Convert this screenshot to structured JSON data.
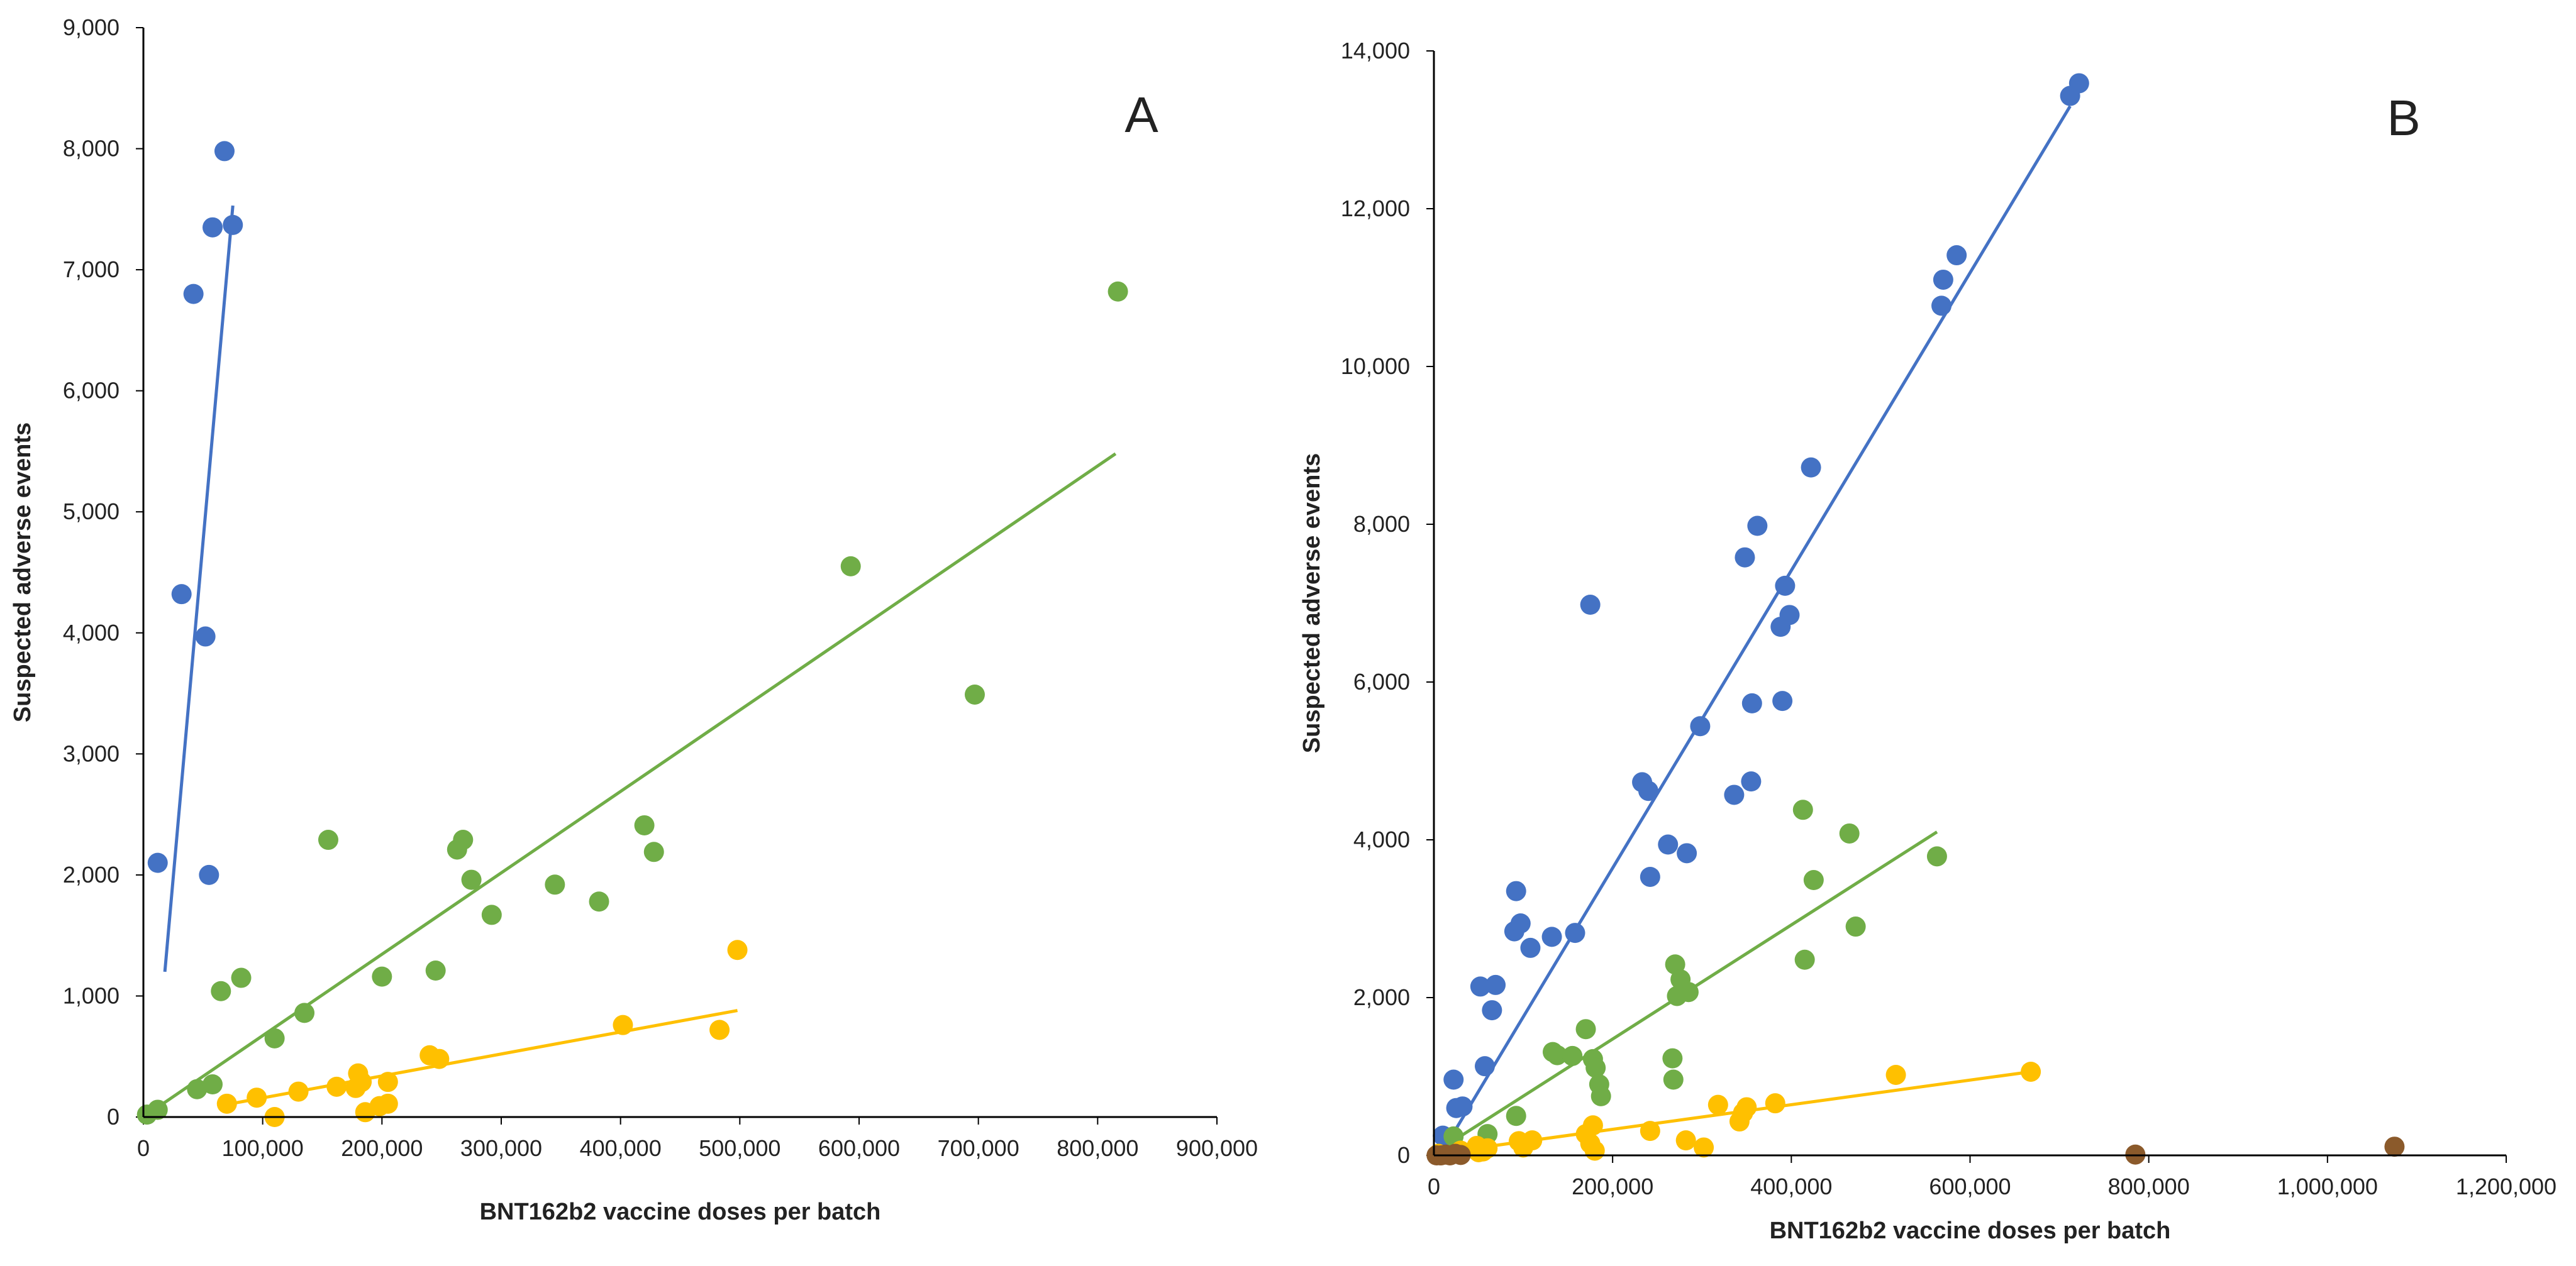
{
  "colors": {
    "blue": "#4472C4",
    "green": "#70AD47",
    "yellow": "#FFC000",
    "brown": "#8B5A2B",
    "axis": "#000000"
  },
  "chart_data": [
    {
      "type": "scatter",
      "panel_label": "A",
      "xlabel": "BNT162b2 vaccine doses per batch",
      "ylabel": "Suspected adverse events",
      "xlim": [
        0,
        900000
      ],
      "ylim": [
        0,
        9000
      ],
      "x_ticks": [
        0,
        100000,
        200000,
        300000,
        400000,
        500000,
        600000,
        700000,
        800000,
        900000
      ],
      "y_ticks": [
        0,
        1000,
        2000,
        3000,
        4000,
        5000,
        6000,
        7000,
        8000,
        9000
      ],
      "x_tick_labels": [
        "0",
        "100,000",
        "200,000",
        "300,000",
        "400,000",
        "500,000",
        "600,000",
        "700,000",
        "800,000",
        "900,000"
      ],
      "y_tick_labels": [
        "0",
        "1,000",
        "2,000",
        "3,000",
        "4,000",
        "5,000",
        "6,000",
        "7,000",
        "8,000",
        "9,000"
      ],
      "series": [
        {
          "name": "blue",
          "color": "#4472C4",
          "points": [
            [
              12000,
              2100
            ],
            [
              32000,
              4320
            ],
            [
              42000,
              6800
            ],
            [
              52000,
              3970
            ],
            [
              55000,
              2000
            ],
            [
              58000,
              7350
            ],
            [
              68000,
              7980
            ],
            [
              75000,
              7370
            ]
          ],
          "trend": [
            [
              18000,
              1200
            ],
            [
              75000,
              7530
            ]
          ]
        },
        {
          "name": "green",
          "color": "#70AD47",
          "points": [
            [
              3000,
              20
            ],
            [
              12000,
              60
            ],
            [
              45000,
              230
            ],
            [
              58000,
              270
            ],
            [
              65000,
              1040
            ],
            [
              82000,
              1150
            ],
            [
              110000,
              650
            ],
            [
              135000,
              860
            ],
            [
              155000,
              2290
            ],
            [
              200000,
              1160
            ],
            [
              245000,
              1210
            ],
            [
              263000,
              2210
            ],
            [
              268000,
              2290
            ],
            [
              275000,
              1960
            ],
            [
              292000,
              1670
            ],
            [
              345000,
              1920
            ],
            [
              382000,
              1780
            ],
            [
              420000,
              2410
            ],
            [
              428000,
              2190
            ],
            [
              593000,
              4550
            ],
            [
              697000,
              3490
            ],
            [
              817000,
              6820
            ]
          ],
          "trend": [
            [
              0,
              0
            ],
            [
              815000,
              5480
            ]
          ]
        },
        {
          "name": "yellow",
          "color": "#FFC000",
          "points": [
            [
              70000,
              110
            ],
            [
              95000,
              160
            ],
            [
              110000,
              0
            ],
            [
              130000,
              210
            ],
            [
              162000,
              250
            ],
            [
              178000,
              240
            ],
            [
              180000,
              360
            ],
            [
              183000,
              290
            ],
            [
              186000,
              40
            ],
            [
              198000,
              90
            ],
            [
              205000,
              290
            ],
            [
              205000,
              110
            ],
            [
              240000,
              510
            ],
            [
              248000,
              480
            ],
            [
              402000,
              760
            ],
            [
              483000,
              720
            ],
            [
              498000,
              1380
            ]
          ],
          "trend": [
            [
              68000,
              100
            ],
            [
              498000,
              880
            ]
          ]
        }
      ]
    },
    {
      "type": "scatter",
      "panel_label": "B",
      "xlabel": "BNT162b2 vaccine doses per batch",
      "ylabel": "Suspected adverse events",
      "xlim": [
        0,
        1200000
      ],
      "ylim": [
        0,
        14000
      ],
      "x_ticks": [
        0,
        200000,
        400000,
        600000,
        800000,
        1000000,
        1200000
      ],
      "y_ticks": [
        0,
        2000,
        4000,
        6000,
        8000,
        10000,
        12000,
        14000
      ],
      "x_tick_labels": [
        "0",
        "200,000",
        "400,000",
        "600,000",
        "800,000",
        "1,000,000",
        "1,200,000"
      ],
      "y_tick_labels": [
        "0",
        "2,000",
        "4,000",
        "6,000",
        "8,000",
        "10,000",
        "12,000",
        "14,000"
      ],
      "series": [
        {
          "name": "blue",
          "color": "#4472C4",
          "points": [
            [
              10000,
              250
            ],
            [
              22000,
              960
            ],
            [
              25000,
              600
            ],
            [
              32000,
              620
            ],
            [
              52000,
              2140
            ],
            [
              57000,
              1130
            ],
            [
              65000,
              1840
            ],
            [
              69000,
              2160
            ],
            [
              90000,
              2840
            ],
            [
              92000,
              3350
            ],
            [
              97000,
              2940
            ],
            [
              108000,
              2630
            ],
            [
              132000,
              2770
            ],
            [
              158000,
              2820
            ],
            [
              175000,
              6980
            ],
            [
              233000,
              4730
            ],
            [
              240000,
              4620
            ],
            [
              242000,
              3530
            ],
            [
              262000,
              3940
            ],
            [
              283000,
              3830
            ],
            [
              298000,
              5440
            ],
            [
              336000,
              4570
            ],
            [
              348000,
              7580
            ],
            [
              355000,
              4740
            ],
            [
              356000,
              5730
            ],
            [
              362000,
              7980
            ],
            [
              388000,
              6700
            ],
            [
              390000,
              5760
            ],
            [
              393000,
              7220
            ],
            [
              398000,
              6850
            ],
            [
              422000,
              8720
            ],
            [
              568000,
              10770
            ],
            [
              570000,
              11100
            ],
            [
              585000,
              11410
            ],
            [
              712000,
              13430
            ],
            [
              722000,
              13590
            ]
          ],
          "trend": [
            [
              8000,
              20
            ],
            [
              712000,
              13300
            ]
          ]
        },
        {
          "name": "green",
          "color": "#70AD47",
          "points": [
            [
              22000,
              240
            ],
            [
              60000,
              270
            ],
            [
              92000,
              500
            ],
            [
              133000,
              1310
            ],
            [
              138000,
              1270
            ],
            [
              155000,
              1260
            ],
            [
              170000,
              1600
            ],
            [
              178000,
              1220
            ],
            [
              181000,
              1110
            ],
            [
              185000,
              900
            ],
            [
              187000,
              750
            ],
            [
              267000,
              1230
            ],
            [
              268000,
              960
            ],
            [
              270000,
              2420
            ],
            [
              272000,
              2020
            ],
            [
              276000,
              2230
            ],
            [
              285000,
              2070
            ],
            [
              413000,
              4380
            ],
            [
              415000,
              2480
            ],
            [
              425000,
              3490
            ],
            [
              465000,
              4080
            ],
            [
              472000,
              2900
            ],
            [
              563000,
              3790
            ]
          ],
          "trend": [
            [
              10000,
              100
            ],
            [
              563000,
              4100
            ]
          ]
        },
        {
          "name": "yellow",
          "color": "#FFC000",
          "points": [
            [
              5000,
              20
            ],
            [
              30000,
              60
            ],
            [
              48000,
              120
            ],
            [
              50000,
              40
            ],
            [
              55000,
              50
            ],
            [
              60000,
              90
            ],
            [
              95000,
              180
            ],
            [
              100000,
              100
            ],
            [
              110000,
              190
            ],
            [
              170000,
              270
            ],
            [
              175000,
              150
            ],
            [
              178000,
              380
            ],
            [
              180000,
              60
            ],
            [
              242000,
              310
            ],
            [
              282000,
              190
            ],
            [
              302000,
              100
            ],
            [
              318000,
              640
            ],
            [
              342000,
              430
            ],
            [
              346000,
              540
            ],
            [
              350000,
              610
            ],
            [
              382000,
              660
            ],
            [
              517000,
              1020
            ],
            [
              668000,
              1060
            ]
          ],
          "trend": [
            [
              20000,
              50
            ],
            [
              668000,
              1060
            ]
          ]
        },
        {
          "name": "brown",
          "color": "#8B5A2B",
          "points": [
            [
              3000,
              0
            ],
            [
              8000,
              0
            ],
            [
              13000,
              10
            ],
            [
              18000,
              0
            ],
            [
              24000,
              20
            ],
            [
              30000,
              5
            ],
            [
              785000,
              10
            ],
            [
              1075000,
              110
            ]
          ],
          "trend": []
        }
      ]
    }
  ]
}
